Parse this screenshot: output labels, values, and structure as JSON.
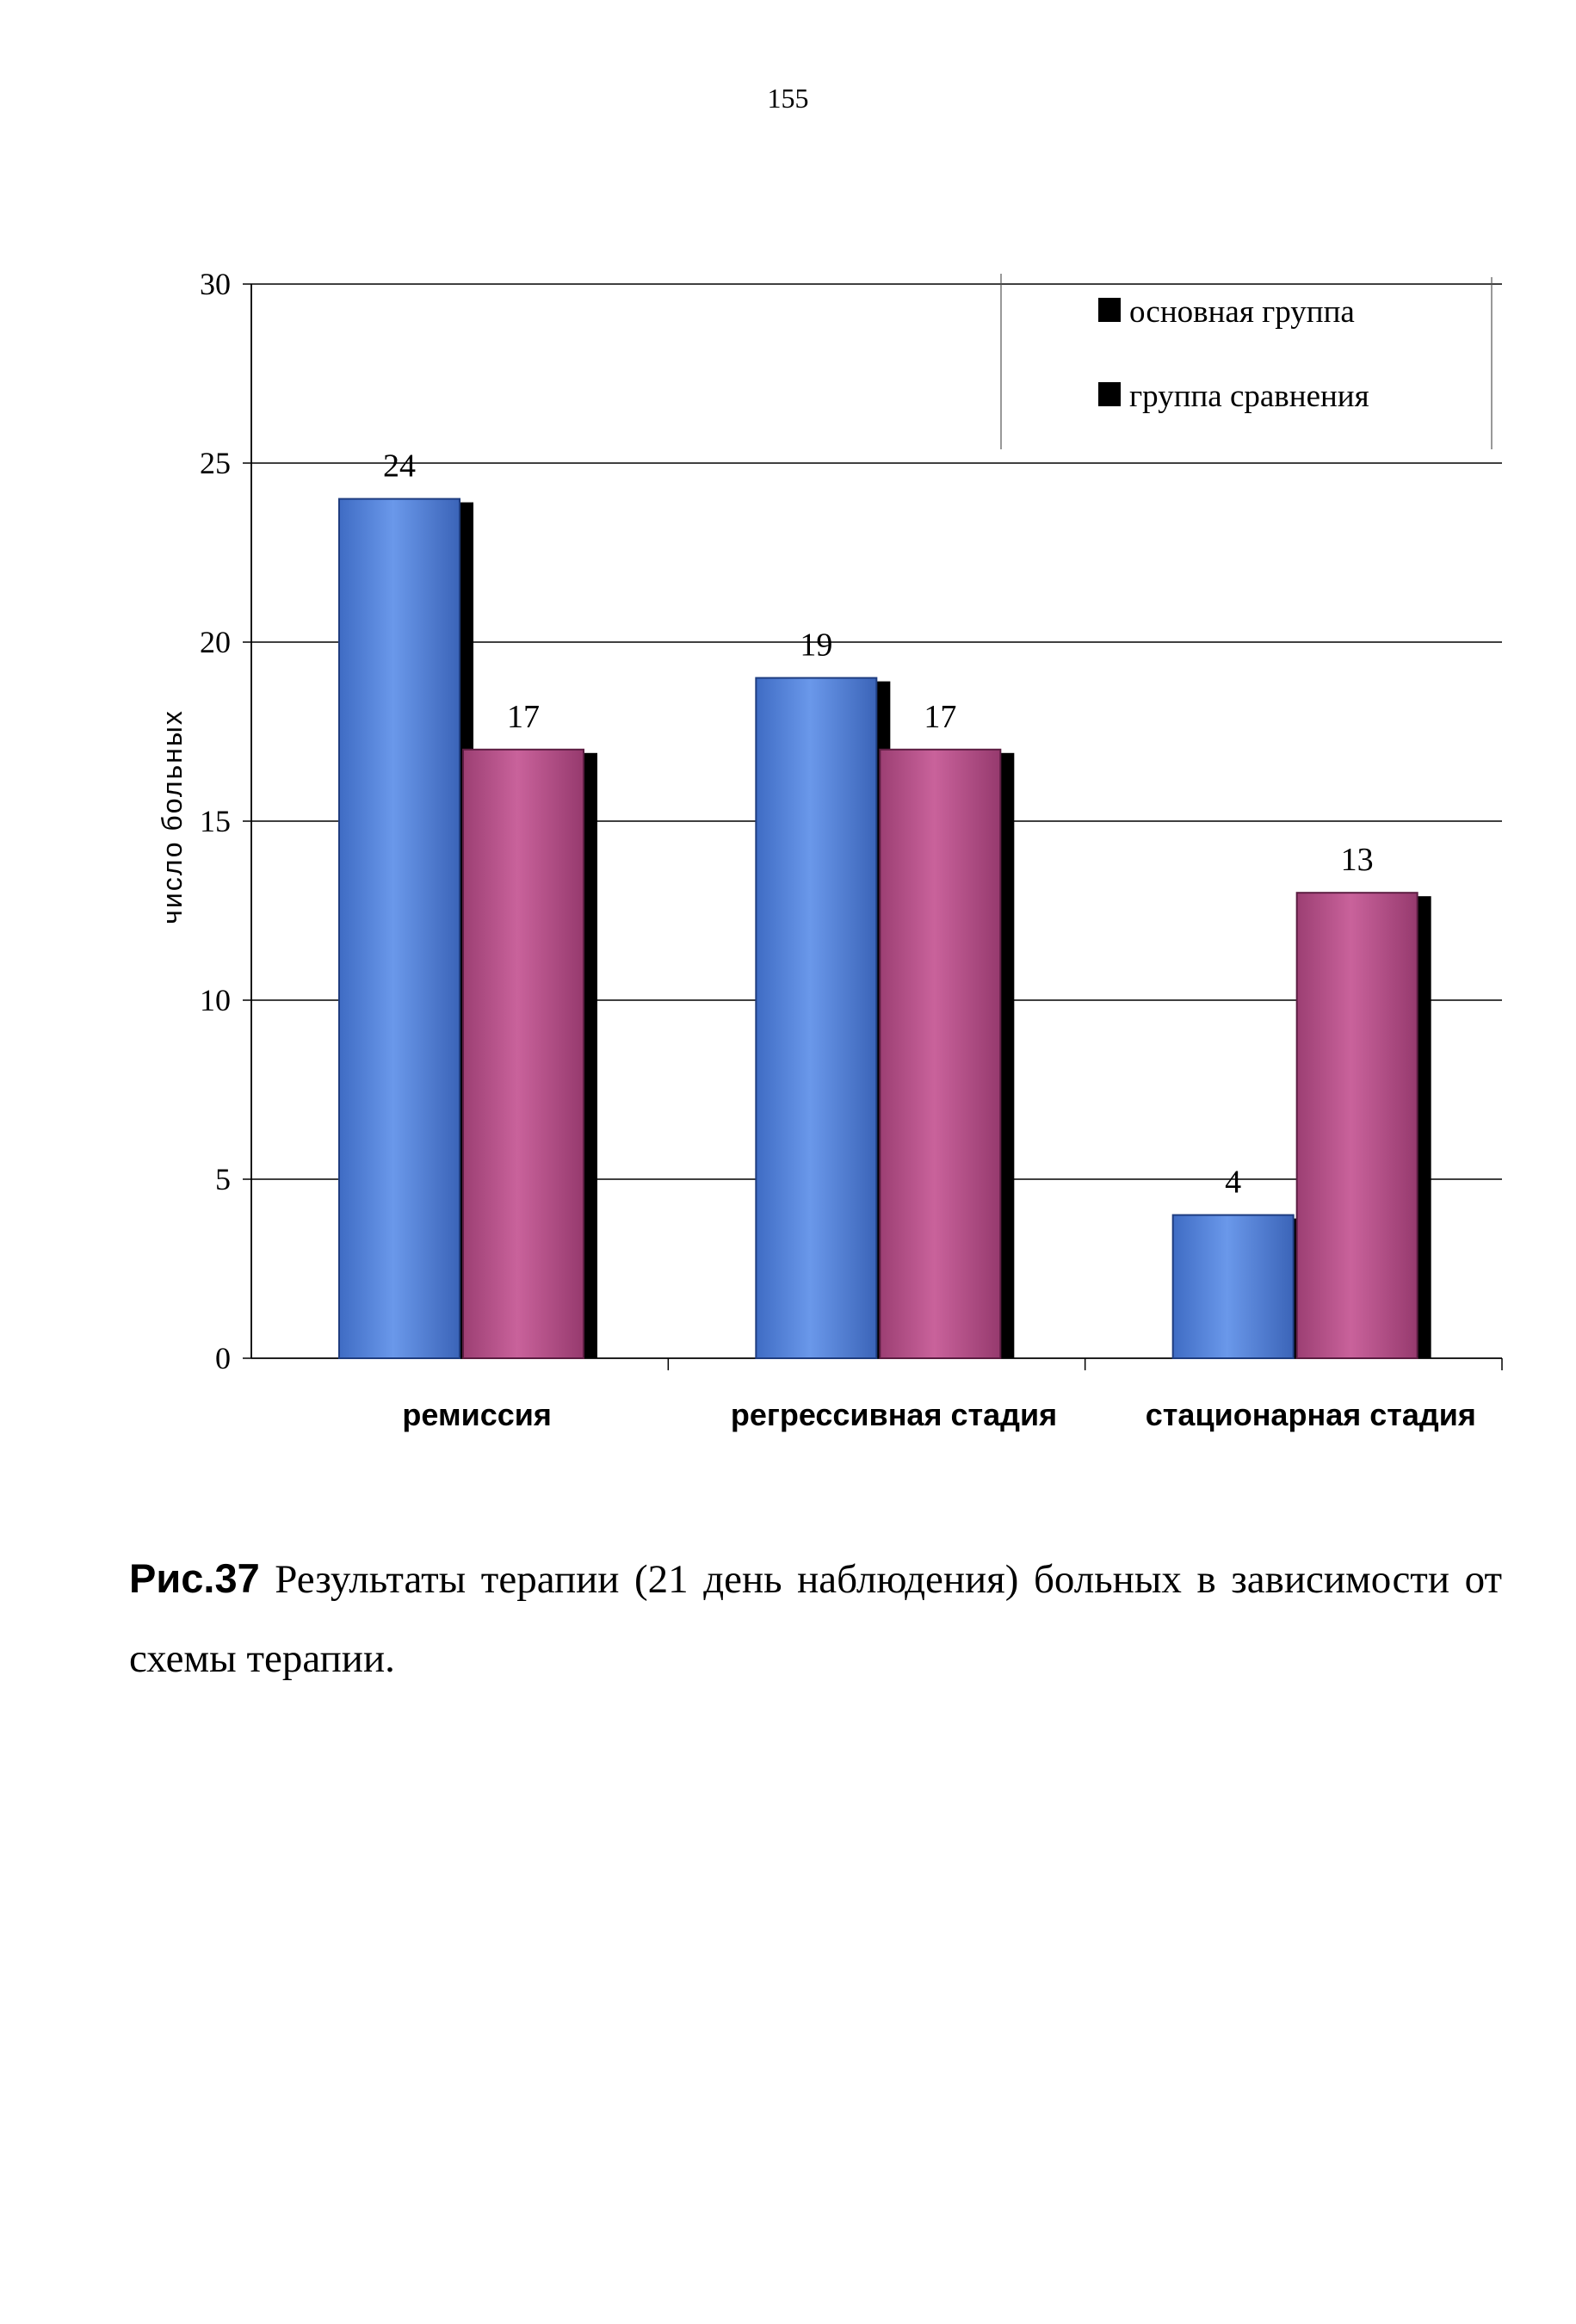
{
  "page": {
    "number": "155"
  },
  "caption": {
    "figure_label": "Рис.37",
    "text": " Результаты терапии (21 день наблюдения) больных в зависимости от схемы терапии."
  },
  "colors": {
    "series_1": "#4f7fd6",
    "series_2": "#b54f87",
    "shadow": "#000000",
    "grid": "#000000"
  },
  "chart_data": {
    "type": "bar",
    "categories": [
      "ремиссия",
      "регрессивная стадия",
      "стационарная стадия"
    ],
    "series": [
      {
        "name": "основная группа",
        "values": [
          24,
          19,
          4
        ]
      },
      {
        "name": "группа сравнения",
        "values": [
          17,
          17,
          13
        ]
      }
    ],
    "title": "",
    "xlabel": "",
    "ylabel": "число больных",
    "ylim": [
      0,
      30
    ],
    "yticks": [
      0,
      5,
      10,
      15,
      20,
      25,
      30
    ],
    "grid": true,
    "legend_position": "top-right",
    "data_labels": true
  }
}
